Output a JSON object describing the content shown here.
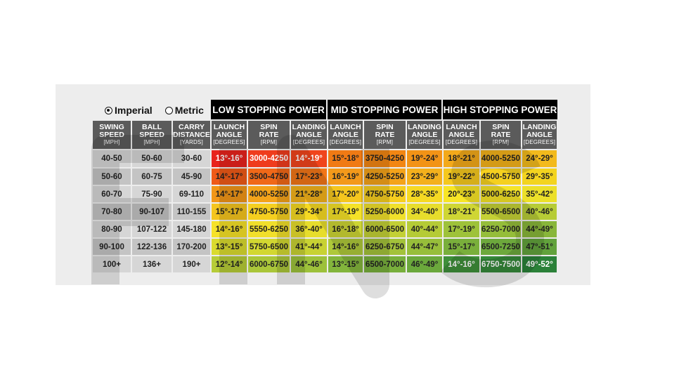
{
  "units": {
    "imperial_label": "Imperial",
    "metric_label": "Metric",
    "selected": "imperial"
  },
  "groups": [
    {
      "title": "LOW STOPPING POWER"
    },
    {
      "title": "MID STOPPING POWER"
    },
    {
      "title": "HIGH STOPPING POWER"
    }
  ],
  "columns": [
    {
      "title": [
        "SWING",
        "SPEED"
      ],
      "unit": "[MPH]"
    },
    {
      "title": [
        "BALL",
        "SPEED"
      ],
      "unit": "[MPH]"
    },
    {
      "title": [
        "CARRY",
        "DISTANCE"
      ],
      "unit": "[YARDS]"
    },
    {
      "title": [
        "LAUNCH",
        "ANGLE"
      ],
      "unit": "[DEGREES]"
    },
    {
      "title": [
        "SPIN",
        "RATE"
      ],
      "unit": "[RPM]"
    },
    {
      "title": [
        "LANDING",
        "ANGLE"
      ],
      "unit": "[DEGREES]"
    },
    {
      "title": [
        "LAUNCH",
        "ANGLE"
      ],
      "unit": "[DEGREES]"
    },
    {
      "title": [
        "SPIN",
        "RATE"
      ],
      "unit": "[RPM]"
    },
    {
      "title": [
        "LANDING",
        "ANGLE"
      ],
      "unit": "[DEGREES]"
    },
    {
      "title": [
        "LAUNCH",
        "ANGLE"
      ],
      "unit": "[DEGREES]"
    },
    {
      "title": [
        "SPIN",
        "RATE"
      ],
      "unit": "[RPM]"
    },
    {
      "title": [
        "LANDING",
        "ANGLE"
      ],
      "unit": "[DEGREES]"
    }
  ],
  "rows": [
    [
      "40-50",
      "50-60",
      "30-60",
      "13°-16°",
      "3000-4250",
      "14°-19°",
      "15°-18°",
      "3750-4250",
      "19°-24°",
      "18°-21°",
      "4000-5250",
      "24°-29°"
    ],
    [
      "50-60",
      "60-75",
      "45-90",
      "14°-17°",
      "3500-4750",
      "17°-23°",
      "16°-19°",
      "4250-5250",
      "23°-29°",
      "19°-22°",
      "4500-5750",
      "29°-35°"
    ],
    [
      "60-70",
      "75-90",
      "69-110",
      "14°-17°",
      "4000-5250",
      "21°-28°",
      "17°-20°",
      "4750-5750",
      "28°-35°",
      "20°-23°",
      "5000-6250",
      "35°-42°"
    ],
    [
      "70-80",
      "90-107",
      "110-155",
      "15°-17°",
      "4750-5750",
      "29°-34°",
      "17°-19°",
      "5250-6000",
      "34°-40°",
      "18°-21°",
      "5500-6500",
      "40°-46°"
    ],
    [
      "80-90",
      "107-122",
      "145-180",
      "14°-16°",
      "5550-6250",
      "36°-40°",
      "16°-18°",
      "6000-6500",
      "40°-44°",
      "17°-19°",
      "6250-7000",
      "44°-49°"
    ],
    [
      "90-100",
      "122-136",
      "170-200",
      "13°-15°",
      "5750-6500",
      "41°-44°",
      "14°-16°",
      "6250-6750",
      "44°-47°",
      "15°-17°",
      "6500-7250",
      "47°-51°"
    ],
    [
      "100+",
      "136+",
      "190+",
      "12°-14°",
      "6000-6750",
      "44°-46°",
      "13°-15°",
      "6500-7000",
      "46°-49°",
      "14°-16°",
      "6750-7500",
      "49°-52°"
    ]
  ],
  "colors": {
    "header_bg": "#5b5b5b",
    "group_bg": "#000000",
    "row_bg": "#d6d6d6",
    "row_bg_alt": "#c4c4c4",
    "row_colors": [
      [
        "#e8231d",
        "#ef3c1d",
        "#f0441c",
        "#f07a14",
        "#f28613",
        "#f29316",
        "#f3a91a",
        "#f4b31b",
        "#f3ba1c"
      ],
      [
        "#ef5a18",
        "#f06818",
        "#f27618",
        "#f3991a",
        "#f4a31a",
        "#f4b01c",
        "#f5c81e",
        "#f5d01f",
        "#f3d41f"
      ],
      [
        "#f29617",
        "#f4a31a",
        "#f4b21b",
        "#f5c61e",
        "#f6ce1f",
        "#f6d923",
        "#f7e526",
        "#f5e428",
        "#ece02a"
      ],
      [
        "#f5c51e",
        "#f5cf1f",
        "#f6d923",
        "#f5e228",
        "#f0e02b",
        "#e7dd2c",
        "#cfd634",
        "#c5d135",
        "#b7cc36"
      ],
      [
        "#f6e228",
        "#f1df2b",
        "#e7dd2c",
        "#cdd534",
        "#c3d035",
        "#b5cb36",
        "#9ec23a",
        "#95bd3a",
        "#88b63a"
      ],
      [
        "#dadb2e",
        "#d2d731",
        "#c8d233",
        "#aec83a",
        "#a3c23a",
        "#97be3a",
        "#79af3b",
        "#6da83c",
        "#62a23c"
      ],
      [
        "#b6cc38",
        "#aac63a",
        "#9dc13b",
        "#83b53c",
        "#78af3c",
        "#6ba83c",
        "#3f8f3a",
        "#35883a",
        "#2b8139"
      ]
    ],
    "white_text_cells": [
      [
        0,
        0
      ],
      [
        0,
        1
      ],
      [
        0,
        2
      ],
      [
        6,
        6
      ],
      [
        6,
        7
      ],
      [
        6,
        8
      ]
    ]
  }
}
